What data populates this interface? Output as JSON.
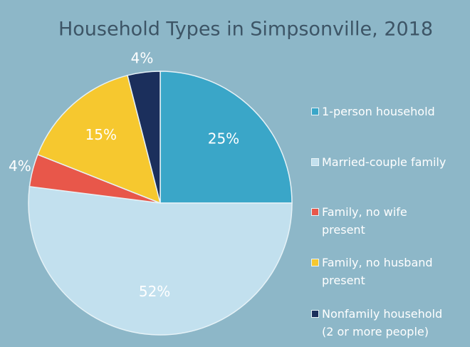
{
  "chart_data": {
    "type": "pie",
    "title": "Household Types in Simpsonville, 2018",
    "categories": [
      "1-person household",
      "Married-couple family",
      "Family, no wife present",
      "Family, no husband present",
      "Nonfamily household (2 or more people)"
    ],
    "values": [
      25,
      52,
      4,
      15,
      4
    ],
    "value_labels": [
      "25%",
      "52%",
      "4%",
      "15%",
      "4%"
    ],
    "colors": [
      "#3aa6c8",
      "#c2e0ee",
      "#e8574a",
      "#f6c82f",
      "#1b2f5c"
    ],
    "legend": "right"
  }
}
